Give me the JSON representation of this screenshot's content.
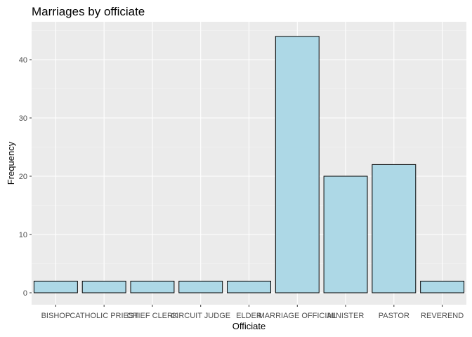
{
  "chart_data": {
    "type": "bar",
    "title": "Marriages by officiate",
    "xlabel": "Officiate",
    "ylabel": "Frequency",
    "categories": [
      "BISHOP",
      "CATHOLIC PRIEST",
      "CHIEF CLERK",
      "CIRCUIT JUDGE",
      "ELDER",
      "MARRIAGE OFFICIAL",
      "MINISTER",
      "PASTOR",
      "REVEREND"
    ],
    "values": [
      2,
      2,
      2,
      2,
      2,
      44,
      20,
      22,
      2
    ],
    "ylim": [
      0,
      46
    ],
    "yticks": [
      0,
      10,
      20,
      30,
      40
    ],
    "grid": true,
    "colors": {
      "panel_background": "#ebebeb",
      "grid_major": "#ffffff",
      "grid_minor": "#f5f5f5",
      "bar_fill": "#add8e6",
      "bar_outline": "#000000"
    }
  }
}
